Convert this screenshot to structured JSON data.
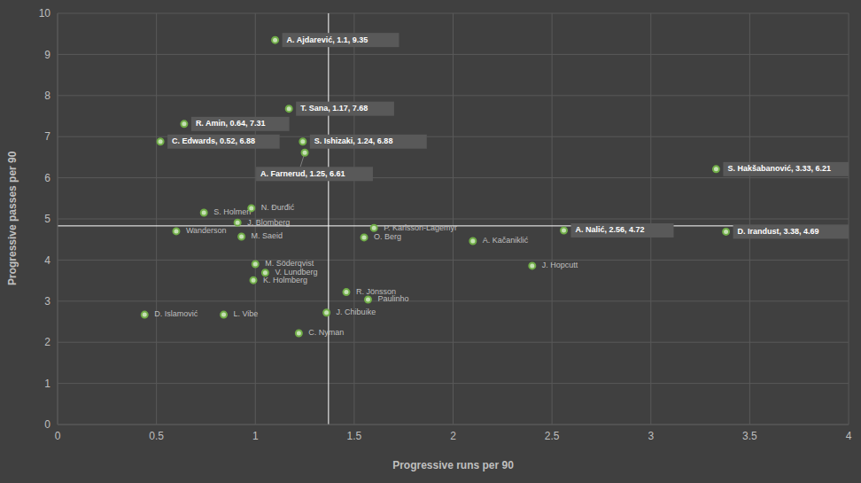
{
  "chart_data": {
    "type": "scatter",
    "x_label": "Progressive runs per 90",
    "y_label": "Progressive passes per 90",
    "xlim": [
      0,
      4
    ],
    "xticks": [
      0,
      0.5,
      1,
      1.5,
      2,
      2.5,
      3,
      3.5,
      4
    ],
    "ylim": [
      0,
      10
    ],
    "yticks": [
      0,
      1,
      2,
      3,
      4,
      5,
      6,
      7,
      8,
      9,
      10
    ],
    "grid": true,
    "color": "#70ad47",
    "marker": "circle",
    "reference_lines": {
      "x": 1.37,
      "y": 4.83
    },
    "points": [
      {
        "label": "A. Ajdarević, 1.1, 9.35",
        "x": 1.1,
        "y": 9.35
      },
      {
        "label": "T. Sana, 1.17, 7.68",
        "x": 1.17,
        "y": 7.68
      },
      {
        "label": "R. Amin, 0.64, 7.31",
        "x": 0.64,
        "y": 7.31
      },
      {
        "label": "C. Edwards, 0.52, 6.88",
        "x": 0.52,
        "y": 6.88
      },
      {
        "label": "S. Ishizaki, 1.24, 6.88",
        "x": 1.24,
        "y": 6.88
      },
      {
        "label": "A. Farnerud, 1.25, 6.61",
        "x": 1.25,
        "y": 6.61
      },
      {
        "label": "S. Hakšabanović, 3.33, 6.21",
        "x": 3.33,
        "y": 6.21
      },
      {
        "label": "A. Nalić, 2.56, 4.72",
        "x": 2.56,
        "y": 4.72
      },
      {
        "label": "D. Irandust, 3.38, 4.69",
        "x": 3.38,
        "y": 4.69
      },
      {
        "label": "S. Holmen",
        "x": 0.74,
        "y": 5.15
      },
      {
        "label": "N. Đurđić",
        "x": 0.98,
        "y": 5.26
      },
      {
        "label": "J. Blomberg",
        "x": 0.91,
        "y": 4.91
      },
      {
        "label": "Wanderson",
        "x": 0.6,
        "y": 4.7
      },
      {
        "label": "M. Saeid",
        "x": 0.93,
        "y": 4.57
      },
      {
        "label": "P. Karlsson-Lagemyr",
        "x": 1.6,
        "y": 4.78
      },
      {
        "label": "O. Berg",
        "x": 1.55,
        "y": 4.55
      },
      {
        "label": "A. Kačaniklić",
        "x": 2.1,
        "y": 4.46
      },
      {
        "label": "J. Hopcutt",
        "x": 2.4,
        "y": 3.86
      },
      {
        "label": "M. Söderqvist",
        "x": 1.0,
        "y": 3.9
      },
      {
        "label": "V. Lundberg",
        "x": 1.05,
        "y": 3.69
      },
      {
        "label": "K. Holmberg",
        "x": 0.99,
        "y": 3.51
      },
      {
        "label": "R. Jönsson",
        "x": 1.46,
        "y": 3.22
      },
      {
        "label": "Paulinho",
        "x": 1.57,
        "y": 3.04
      },
      {
        "label": "D. Islamović",
        "x": 0.44,
        "y": 2.67
      },
      {
        "label": "L. Vibe",
        "x": 0.84,
        "y": 2.67
      },
      {
        "label": "J. Chibuike",
        "x": 1.36,
        "y": 2.72
      },
      {
        "label": "C. Nyman",
        "x": 1.22,
        "y": 2.22
      }
    ]
  }
}
